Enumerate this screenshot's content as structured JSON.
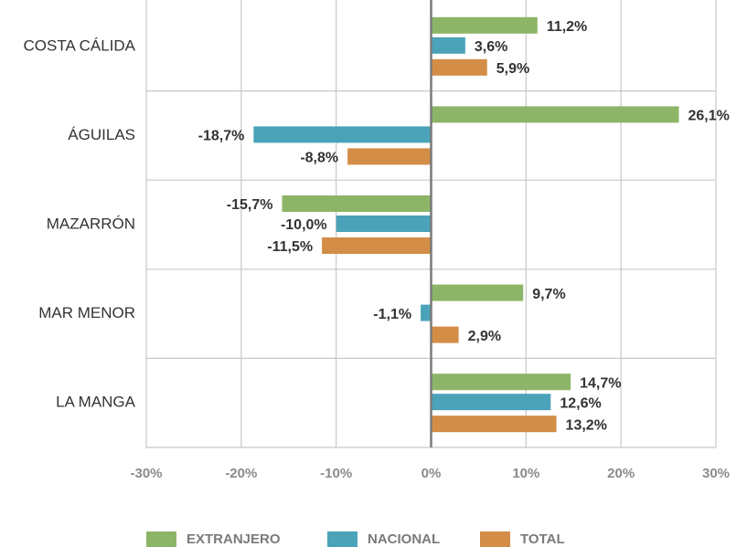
{
  "chart_data": {
    "type": "bar",
    "orientation": "horizontal",
    "categories": [
      "COSTA CÁLIDA",
      "ÁGUILAS",
      "MAZARRÓN",
      "MAR MENOR",
      "LA MANGA"
    ],
    "series": [
      {
        "name": "EXTRANJERO",
        "color": "#8db567",
        "values": [
          11.2,
          26.1,
          -15.7,
          9.7,
          14.7
        ],
        "value_labels": [
          "11,2%",
          "26,1%",
          "-15,7%",
          "9,7%",
          "14,7%"
        ]
      },
      {
        "name": "NACIONAL",
        "color": "#4ba3b9",
        "values": [
          3.6,
          -18.7,
          -10.0,
          -1.1,
          12.6
        ],
        "value_labels": [
          "3,6%",
          "-18,7%",
          "-10,0%",
          "-1,1%",
          "12,6%"
        ]
      },
      {
        "name": "TOTAL",
        "color": "#d38d47",
        "values": [
          5.9,
          -8.8,
          -11.5,
          2.9,
          13.2
        ],
        "value_labels": [
          "5,9%",
          "-8,8%",
          "-11,5%",
          "2,9%",
          "13,2%"
        ]
      }
    ],
    "xlim": [
      -30,
      30
    ],
    "xticks": [
      {
        "value": -30,
        "label": "-30%"
      },
      {
        "value": -20,
        "label": "-20%"
      },
      {
        "value": -10,
        "label": "-10%"
      },
      {
        "value": 0,
        "label": "0%"
      },
      {
        "value": 10,
        "label": "10%"
      },
      {
        "value": 20,
        "label": "20%"
      },
      {
        "value": 30,
        "label": "30%"
      }
    ],
    "grid": true,
    "legend": "bottom"
  }
}
